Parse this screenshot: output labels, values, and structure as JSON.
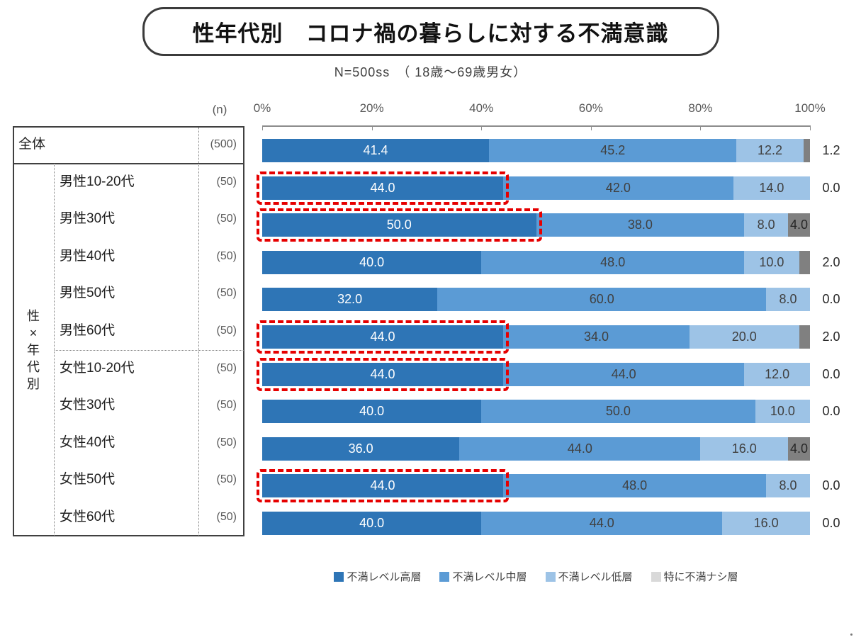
{
  "title": "性年代別　コロナ禍の暮らしに対する不満意識",
  "subtitle": "N=500ss　（ 18歳〜69歳男女）",
  "table": {
    "n_header": "(n)",
    "group_label": "性×年代別"
  },
  "legend": {
    "items": [
      {
        "label": "不満レベル高層",
        "color": "#2E75B6"
      },
      {
        "label": "不満レベル中層",
        "color": "#5B9BD5"
      },
      {
        "label": "不満レベル低層",
        "color": "#9DC3E6"
      },
      {
        "label": "特に不満ナシ層",
        "color": "#D9D9D9"
      }
    ]
  },
  "colors": {
    "segment_colors": [
      "#2E75B6",
      "#5B9BD5",
      "#9DC3E6",
      "#808080"
    ],
    "highlight_border": "#E60000",
    "label_on_dark": "#FFFFFF",
    "label_on_light": "#404040",
    "outside_label": "#262626",
    "axis": "#8C8C8C",
    "tick_text": "#595959",
    "table_border": "#404040"
  },
  "chart_data": {
    "type": "bar",
    "stacked": true,
    "orientation": "horizontal",
    "xlim": [
      0,
      100
    ],
    "x_ticks": [
      "0%",
      "20%",
      "40%",
      "60%",
      "80%",
      "100%"
    ],
    "grid": false,
    "legend_position": "bottom",
    "series_names": [
      "不満レベル高層",
      "不満レベル中層",
      "不満レベル低層",
      "特に不満ナシ層"
    ],
    "rows": [
      {
        "label": "全体",
        "n": "(500)",
        "values": [
          41.4,
          45.2,
          12.2,
          1.2
        ],
        "highlighted": false
      },
      {
        "label": "男性10-20代",
        "n": "(50)",
        "values": [
          44.0,
          42.0,
          14.0,
          0.0
        ],
        "highlighted": true
      },
      {
        "label": "男性30代",
        "n": "(50)",
        "values": [
          50.0,
          38.0,
          8.0,
          4.0
        ],
        "highlighted": true
      },
      {
        "label": "男性40代",
        "n": "(50)",
        "values": [
          40.0,
          48.0,
          10.0,
          2.0
        ],
        "highlighted": false
      },
      {
        "label": "男性50代",
        "n": "(50)",
        "values": [
          32.0,
          60.0,
          8.0,
          0.0
        ],
        "highlighted": false
      },
      {
        "label": "男性60代",
        "n": "(50)",
        "values": [
          44.0,
          34.0,
          20.0,
          2.0
        ],
        "highlighted": true
      },
      {
        "label": "女性10-20代",
        "n": "(50)",
        "values": [
          44.0,
          44.0,
          12.0,
          0.0
        ],
        "highlighted": true
      },
      {
        "label": "女性30代",
        "n": "(50)",
        "values": [
          40.0,
          50.0,
          10.0,
          0.0
        ],
        "highlighted": false
      },
      {
        "label": "女性40代",
        "n": "(50)",
        "values": [
          36.0,
          44.0,
          16.0,
          4.0
        ],
        "highlighted": false
      },
      {
        "label": "女性50代",
        "n": "(50)",
        "values": [
          44.0,
          48.0,
          8.0,
          0.0
        ],
        "highlighted": true
      },
      {
        "label": "女性60代",
        "n": "(50)",
        "values": [
          40.0,
          44.0,
          16.0,
          0.0
        ],
        "highlighted": false
      }
    ]
  }
}
